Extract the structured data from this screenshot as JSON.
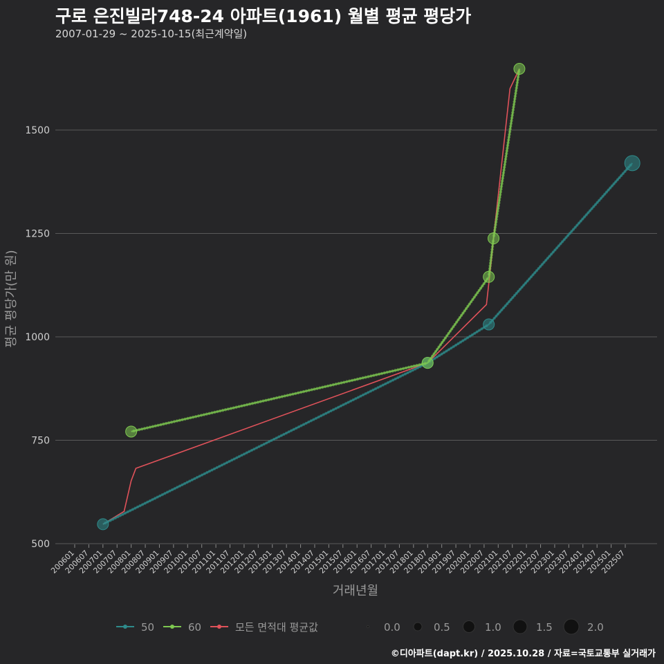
{
  "header": {
    "title": "구로 은진빌라748-24 아파트(1961) 월별 평균 평당가",
    "subtitle": "2007-01-29 ~ 2025-10-15(최근계약일)"
  },
  "footer": {
    "caption": "©디아파트(dapt.kr) / 2025.10.28 / 자료=국토교통부 실거래가"
  },
  "colors": {
    "s50": "#2e8b8b",
    "s60": "#7ec850",
    "avg": "#e0525a",
    "grid": "#5a5a5a"
  },
  "chart_data": {
    "type": "line",
    "xlabel": "거래년월",
    "ylabel": "평균 평당가(만 원)",
    "ylim": [
      500,
      1665
    ],
    "yticks": [
      500,
      750,
      1000,
      1250,
      1500
    ],
    "x_range": [
      "2006-01",
      "2025-07"
    ],
    "x_tick_labels": [
      "200601",
      "200607",
      "200701",
      "200707",
      "200801",
      "200807",
      "200901",
      "200907",
      "201001",
      "201007",
      "201101",
      "201107",
      "201201",
      "201207",
      "201301",
      "201307",
      "201401",
      "201407",
      "201501",
      "201507",
      "201601",
      "201607",
      "201701",
      "201707",
      "201801",
      "201807",
      "201901",
      "201907",
      "202001",
      "202007",
      "202101",
      "202107",
      "202201",
      "202207",
      "202301",
      "202307",
      "202401",
      "202407",
      "202501",
      "202507"
    ],
    "series": [
      {
        "name": "50",
        "points": [
          {
            "x": "2007-01",
            "y": 547,
            "count": 1
          },
          {
            "x": "2018-07",
            "y": 937,
            "count": 1
          },
          {
            "x": "2020-09",
            "y": 1030,
            "count": 1
          },
          {
            "x": "2025-10",
            "y": 1420,
            "count": 2
          }
        ]
      },
      {
        "name": "60",
        "points": [
          {
            "x": "2008-01",
            "y": 771,
            "count": 1
          },
          {
            "x": "2018-07",
            "y": 937,
            "count": 1
          },
          {
            "x": "2020-09",
            "y": 1145,
            "count": 1
          },
          {
            "x": "2020-11",
            "y": 1238,
            "count": 1
          },
          {
            "x": "2021-10",
            "y": 1648,
            "count": 1
          }
        ]
      },
      {
        "name": "모든 면적대 평균값",
        "points": [
          {
            "x": "2007-01",
            "y": 547
          },
          {
            "x": "2007-10",
            "y": 578
          },
          {
            "x": "2008-01",
            "y": 652
          },
          {
            "x": "2008-03",
            "y": 682
          },
          {
            "x": "2018-07",
            "y": 937
          },
          {
            "x": "2020-08",
            "y": 1078
          },
          {
            "x": "2020-10",
            "y": 1180
          },
          {
            "x": "2020-11",
            "y": 1238
          },
          {
            "x": "2021-06",
            "y": 1600
          },
          {
            "x": "2021-10",
            "y": 1648
          }
        ]
      }
    ],
    "size_legend": {
      "title": "",
      "values": [
        "0.0",
        "0.5",
        "1.0",
        "1.5",
        "2.0"
      ]
    },
    "legend_position": "bottom"
  }
}
